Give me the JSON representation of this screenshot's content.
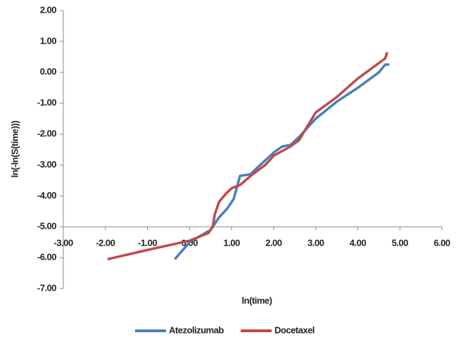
{
  "chart_data": {
    "type": "line",
    "x_label": "ln(time)",
    "y_label": "ln(-ln(S(time)))",
    "xlim": [
      -3,
      6
    ],
    "ylim": [
      -7,
      2
    ],
    "x_axis_at": -5,
    "xticks": [
      {
        "value": -3,
        "label": "-3.00"
      },
      {
        "value": -2,
        "label": "-2.00"
      },
      {
        "value": -1,
        "label": "-1.00"
      },
      {
        "value": 0,
        "label": "0.00"
      },
      {
        "value": 1,
        "label": "1.00"
      },
      {
        "value": 2,
        "label": "2.00"
      },
      {
        "value": 3,
        "label": "3.00"
      },
      {
        "value": 4,
        "label": "4.00"
      },
      {
        "value": 5,
        "label": "5.00"
      },
      {
        "value": 6,
        "label": "6.00"
      }
    ],
    "yticks": [
      {
        "value": 2,
        "label": "2.00"
      },
      {
        "value": 1,
        "label": "1.00"
      },
      {
        "value": 0,
        "label": "0.00"
      },
      {
        "value": -1,
        "label": "-1.00"
      },
      {
        "value": -2,
        "label": "-2.00"
      },
      {
        "value": -3,
        "label": "-3.00"
      },
      {
        "value": -4,
        "label": "-4.00"
      },
      {
        "value": -5,
        "label": "-5.00"
      },
      {
        "value": -6,
        "label": "-6.00"
      },
      {
        "value": -7,
        "label": "-7.00"
      }
    ],
    "grid": false,
    "legend": "bottom",
    "series": [
      {
        "name": "Atezolizumab",
        "color": "#4a7ebb",
        "x": [
          -0.35,
          0.0,
          0.5,
          0.7,
          0.9,
          1.05,
          1.15,
          1.2,
          1.45,
          1.6,
          2.0,
          2.2,
          2.4,
          2.6,
          3.0,
          3.5,
          4.0,
          4.5,
          4.65,
          4.75
        ],
        "values": [
          -6.05,
          -5.5,
          -5.1,
          -4.7,
          -4.4,
          -4.1,
          -3.6,
          -3.35,
          -3.3,
          -3.1,
          -2.6,
          -2.4,
          -2.35,
          -2.1,
          -1.5,
          -0.95,
          -0.5,
          0.0,
          0.25,
          0.25
        ]
      },
      {
        "name": "Docetaxel",
        "color": "#be4b48",
        "x": [
          -1.95,
          -1.0,
          0.0,
          0.45,
          0.55,
          0.6,
          0.7,
          0.85,
          1.0,
          1.2,
          1.5,
          1.8,
          2.0,
          2.4,
          2.6,
          3.0,
          3.5,
          4.0,
          4.5,
          4.65,
          4.7
        ],
        "values": [
          -6.05,
          -5.75,
          -5.45,
          -5.2,
          -5.0,
          -4.6,
          -4.2,
          -3.95,
          -3.75,
          -3.65,
          -3.3,
          -3.0,
          -2.7,
          -2.4,
          -2.2,
          -1.3,
          -0.8,
          -0.2,
          0.3,
          0.45,
          0.65
        ]
      }
    ]
  }
}
